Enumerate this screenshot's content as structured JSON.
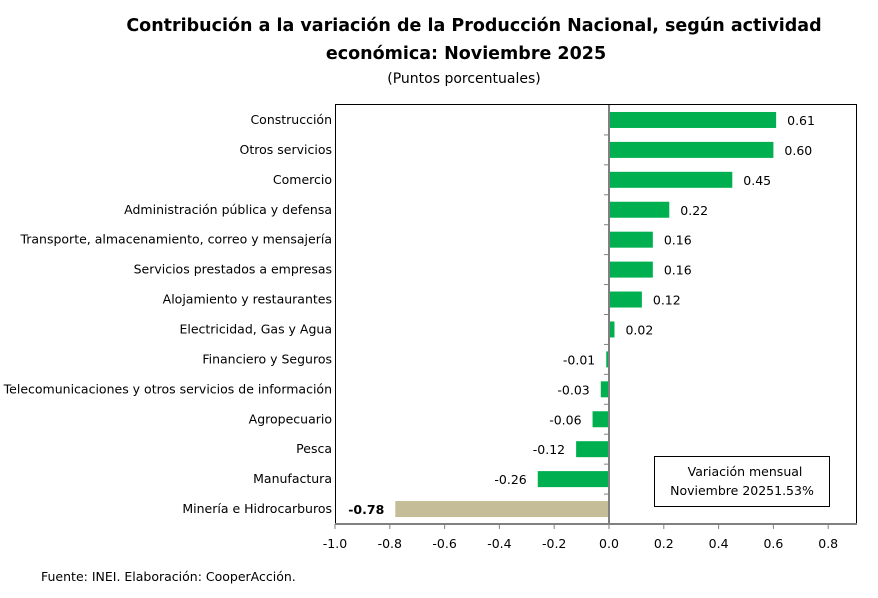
{
  "chart_data": {
    "type": "bar",
    "orientation": "horizontal",
    "title": "Contribución a la variación de la Producción Nacional, según actividad económica: Noviembre 2025",
    "title_lines": [
      "Contribución a la variación de la Producción Nacional, según actividad",
      "económica: Noviembre 2025"
    ],
    "subtitle": "(Puntos porcentuales)",
    "xlabel": "",
    "ylabel": "",
    "xlim": [
      -1.0,
      0.9
    ],
    "xticks": [
      -1.0,
      -0.8,
      -0.6,
      -0.4,
      -0.2,
      0.0,
      0.2,
      0.4,
      0.6,
      0.8
    ],
    "xtick_labels": [
      "-1.0",
      "-0.8",
      "-0.6",
      "-0.4",
      "-0.2",
      "0.0",
      "0.2",
      "0.4",
      "0.6",
      "0.8"
    ],
    "grid": false,
    "categories": [
      "Construcción",
      "Otros servicios",
      "Comercio",
      "Administración pública y defensa",
      "Transporte, almacenamiento, correo y mensajería",
      "Servicios prestados a empresas",
      "Alojamiento y restaurantes",
      "Electricidad, Gas y Agua",
      "Financiero y Seguros",
      "Telecomunicaciones y otros servicios de información",
      "Agropecuario",
      "Pesca",
      "Manufactura",
      "Minería e Hidrocarburos"
    ],
    "values": [
      0.61,
      0.6,
      0.45,
      0.22,
      0.16,
      0.16,
      0.12,
      0.02,
      -0.01,
      -0.03,
      -0.06,
      -0.12,
      -0.26,
      -0.78
    ],
    "value_labels": [
      "0.61",
      "0.60",
      "0.45",
      "0.22",
      "0.16",
      "0.16",
      "0.12",
      "0.02",
      "-0.01",
      "-0.03",
      "-0.06",
      "-0.12",
      "-0.26",
      "-0.78"
    ],
    "bar_colors": [
      "#00B050",
      "#00B050",
      "#00B050",
      "#00B050",
      "#00B050",
      "#00B050",
      "#00B050",
      "#00B050",
      "#00B050",
      "#00B050",
      "#00B050",
      "#00B050",
      "#00B050",
      "#C4BD97"
    ],
    "highlight_label_bold": [
      false,
      false,
      false,
      false,
      false,
      false,
      false,
      false,
      false,
      false,
      false,
      false,
      false,
      true
    ],
    "annotation": {
      "line1": "Variación mensual",
      "line2": "Noviembre 20251.53%",
      "placement": "bottom-right"
    },
    "legend": null
  },
  "footer": {
    "source": "Fuente: INEI. Elaboración: CooperAcción."
  },
  "colors": {
    "positive": "#00B050",
    "highlight": "#C4BD97",
    "axis": "#808080",
    "frame": "#000000"
  }
}
